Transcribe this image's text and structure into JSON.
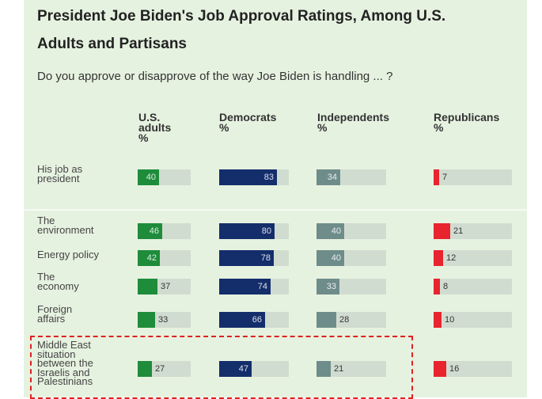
{
  "title_line1": "President Joe Biden's Job Approval Ratings, Among U.S.",
  "title_line2": "Adults and Partisans",
  "subtitle": "Do you approve or disapprove of the way Joe Biden is handling ... ?",
  "columns": [
    {
      "lines": [
        "U.S.",
        "adults",
        "%"
      ]
    },
    {
      "lines": [
        "Democrats",
        "%"
      ]
    },
    {
      "lines": [
        "Independents",
        "%"
      ]
    },
    {
      "lines": [
        "Republicans",
        "%"
      ]
    }
  ],
  "colors": {
    "background": "#e6f2e0",
    "track": "#d1dcd0",
    "us_adults": "#1e8c3a",
    "democrats": "#142d6b",
    "independents": "#6e8c8a",
    "republicans": "#e8242e",
    "highlight": "#e02020"
  },
  "chart_data": {
    "type": "bar",
    "title": "President Joe Biden's Job Approval Ratings, Among U.S. Adults and Partisans",
    "subtitle": "Do you approve or disapprove of the way Joe Biden is handling ... ?",
    "categories": [
      [
        "His job as",
        "president"
      ],
      [
        "The",
        "environment"
      ],
      [
        "Energy policy"
      ],
      [
        "The",
        "economy"
      ],
      [
        "Foreign",
        "affairs"
      ],
      [
        "Middle East",
        "situation",
        "between the",
        "Israelis and",
        "Palestinians"
      ]
    ],
    "series": [
      {
        "name": "U.S. adults %",
        "values": [
          40,
          46,
          42,
          37,
          33,
          27
        ]
      },
      {
        "name": "Democrats %",
        "values": [
          83,
          80,
          78,
          74,
          66,
          47
        ]
      },
      {
        "name": "Independents %",
        "values": [
          34,
          40,
          40,
          33,
          28,
          21
        ]
      },
      {
        "name": "Republicans %",
        "values": [
          7,
          21,
          12,
          8,
          10,
          16
        ]
      }
    ],
    "ylim": [
      0,
      100
    ],
    "highlighted_category": 5
  }
}
